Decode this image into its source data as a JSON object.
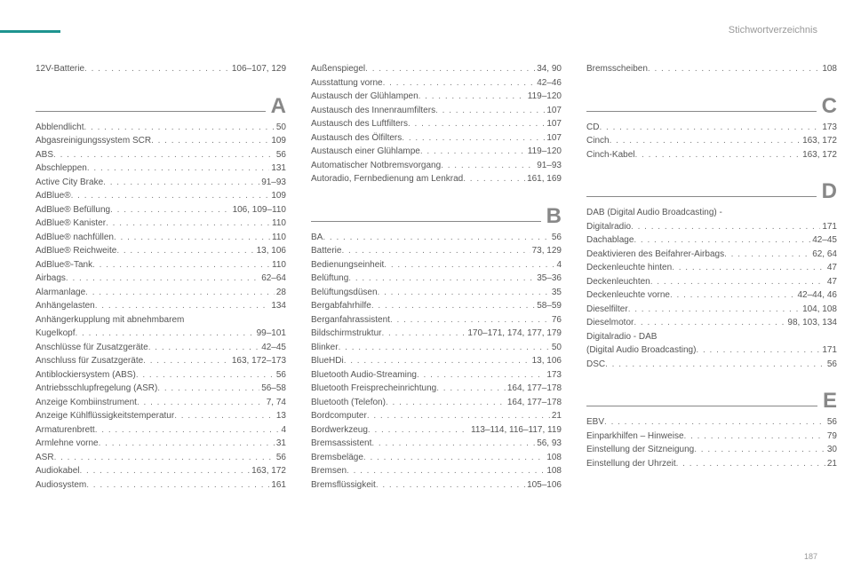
{
  "header": "Stichwortverzeichnis",
  "page_number": "187",
  "colors": {
    "accent": "#1e9490",
    "text": "#555",
    "muted": "#888"
  },
  "cols": [
    {
      "groups": [
        {
          "letter": null,
          "entries": [
            {
              "term": "12V-Batterie",
              "pages": "106–107, 129"
            }
          ]
        },
        {
          "letter": "A",
          "entries": [
            {
              "term": "Abblendlicht",
              "pages": "50"
            },
            {
              "term": "Abgasreinigungssystem SCR",
              "pages": "109"
            },
            {
              "term": "ABS",
              "pages": "56"
            },
            {
              "term": "Abschleppen",
              "pages": "131"
            },
            {
              "term": "Active City Brake",
              "pages": "91–93"
            },
            {
              "term": "AdBlue®",
              "pages": "109"
            },
            {
              "term": "AdBlue® Befüllung",
              "pages": "106, 109–110"
            },
            {
              "term": "AdBlue® Kanister",
              "pages": "110"
            },
            {
              "term": "AdBlue® nachfüllen",
              "pages": "110"
            },
            {
              "term": "AdBlue® Reichweite",
              "pages": "13, 106"
            },
            {
              "term": "AdBlue®-Tank",
              "pages": "110"
            },
            {
              "term": "Airbags",
              "pages": "62–64"
            },
            {
              "term": "Alarmanlage",
              "pages": "28"
            },
            {
              "term": "Anhängelasten",
              "pages": "134"
            },
            {
              "term": "Anhängerkupplung mit abnehmbarem",
              "pages": "",
              "plain": true
            },
            {
              "term": "Kugelkopf",
              "pages": "99–101"
            },
            {
              "term": "Anschlüsse für Zusatzgeräte",
              "pages": "42–45"
            },
            {
              "term": "Anschluss für Zusatzgeräte",
              "pages": "163, 172–173"
            },
            {
              "term": "Antiblockiersystem (ABS)",
              "pages": "56"
            },
            {
              "term": "Antriebsschlupfregelung (ASR)",
              "pages": "56–58"
            },
            {
              "term": "Anzeige Kombiinstrument",
              "pages": "7, 74"
            },
            {
              "term": "Anzeige Kühlflüssigkeitstemperatur",
              "pages": "13"
            },
            {
              "term": "Armaturenbrett",
              "pages": "4"
            },
            {
              "term": "Armlehne vorne",
              "pages": "31"
            },
            {
              "term": "ASR",
              "pages": "56"
            },
            {
              "term": "Audiokabel",
              "pages": "163, 172"
            },
            {
              "term": "Audiosystem",
              "pages": "161"
            }
          ]
        }
      ]
    },
    {
      "groups": [
        {
          "letter": null,
          "entries": [
            {
              "term": "Außenspiegel",
              "pages": "34, 90"
            },
            {
              "term": "Ausstattung vorne",
              "pages": "42–46"
            },
            {
              "term": "Austausch der Glühlampen",
              "pages": "119–120"
            },
            {
              "term": "Austausch des Innenraumfilters",
              "pages": "107"
            },
            {
              "term": "Austausch des Luftfilters",
              "pages": "107"
            },
            {
              "term": "Austausch des Ölfilters",
              "pages": "107"
            },
            {
              "term": "Austausch einer Glühlampe",
              "pages": "119–120"
            },
            {
              "term": "Automatischer Notbremsvorgang",
              "pages": "91–93"
            },
            {
              "term": "Autoradio, Fernbedienung am Lenkrad",
              "pages": "161, 169"
            }
          ]
        },
        {
          "letter": "B",
          "entries": [
            {
              "term": "BA",
              "pages": "56"
            },
            {
              "term": "Batterie",
              "pages": "73, 129"
            },
            {
              "term": "Bedienungseinheit",
              "pages": "4"
            },
            {
              "term": "Belüftung",
              "pages": "35–36"
            },
            {
              "term": "Belüftungsdüsen",
              "pages": "35"
            },
            {
              "term": "Bergabfahrhilfe",
              "pages": "58–59"
            },
            {
              "term": "Berganfahrassistent",
              "pages": "76"
            },
            {
              "term": "Bildschirmstruktur",
              "pages": "170–171, 174, 177, 179"
            },
            {
              "term": "Blinker",
              "pages": "50"
            },
            {
              "term": "BlueHDi",
              "pages": "13, 106"
            },
            {
              "term": "Bluetooth Audio-Streaming",
              "pages": "173"
            },
            {
              "term": "Bluetooth Freisprecheinrichtung",
              "pages": "164, 177–178"
            },
            {
              "term": "Bluetooth (Telefon)",
              "pages": "164, 177–178"
            },
            {
              "term": "Bordcomputer",
              "pages": "21"
            },
            {
              "term": "Bordwerkzeug",
              "pages": "113–114, 116–117, 119"
            },
            {
              "term": "Bremsassistent",
              "pages": "56, 93"
            },
            {
              "term": "Bremsbeläge",
              "pages": "108"
            },
            {
              "term": "Bremsen",
              "pages": "108"
            },
            {
              "term": "Bremsflüssigkeit",
              "pages": "105–106"
            }
          ]
        }
      ]
    },
    {
      "groups": [
        {
          "letter": null,
          "entries": [
            {
              "term": "Bremsscheiben",
              "pages": "108"
            }
          ]
        },
        {
          "letter": "C",
          "entries": [
            {
              "term": "CD",
              "pages": "173"
            },
            {
              "term": "Cinch",
              "pages": "163, 172"
            },
            {
              "term": "Cinch-Kabel",
              "pages": "163, 172"
            }
          ]
        },
        {
          "letter": "D",
          "entries": [
            {
              "term": "DAB (Digital Audio Broadcasting) -",
              "pages": "",
              "plain": true
            },
            {
              "term": "Digitalradio",
              "pages": "171"
            },
            {
              "term": "Dachablage",
              "pages": "42–45"
            },
            {
              "term": "Deaktivieren des Beifahrer-Airbags",
              "pages": "62, 64"
            },
            {
              "term": "Deckenleuchte hinten",
              "pages": "47"
            },
            {
              "term": "Deckenleuchten",
              "pages": "47"
            },
            {
              "term": "Deckenleuchte vorne",
              "pages": "42–44, 46"
            },
            {
              "term": "Dieselfilter",
              "pages": "104, 108"
            },
            {
              "term": "Dieselmotor",
              "pages": "98, 103, 134"
            },
            {
              "term": "Digitalradio - DAB",
              "pages": "",
              "plain": true
            },
            {
              "term": "(Digital Audio Broadcasting)",
              "pages": "171"
            },
            {
              "term": "DSC",
              "pages": "56"
            }
          ]
        },
        {
          "letter": "E",
          "entries": [
            {
              "term": "EBV",
              "pages": "56"
            },
            {
              "term": "Einparkhilfen – Hinweise",
              "pages": "79"
            },
            {
              "term": "Einstellung der Sitzneigung",
              "pages": "30"
            },
            {
              "term": "Einstellung der Uhrzeit",
              "pages": "21"
            }
          ]
        }
      ]
    }
  ]
}
